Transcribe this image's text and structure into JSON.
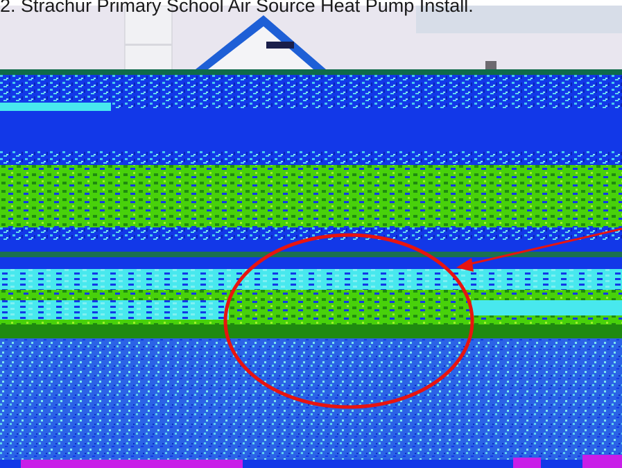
{
  "caption": "2. Strachur Primary School Air Source Heat Pump Install.",
  "photo": {
    "subject": "school-building-with-air-source-heat-pump-location-circled",
    "annotation_color": "#e8140f",
    "colors": {
      "sky": "#e9e6ef",
      "roof": "#1e5fd6",
      "wall": "#f4f4f7",
      "band_blue": "#1238e8",
      "band_green": "#52d80a",
      "band_cyan": "#48e8ee",
      "band_magenta": "#c81ee8"
    }
  }
}
